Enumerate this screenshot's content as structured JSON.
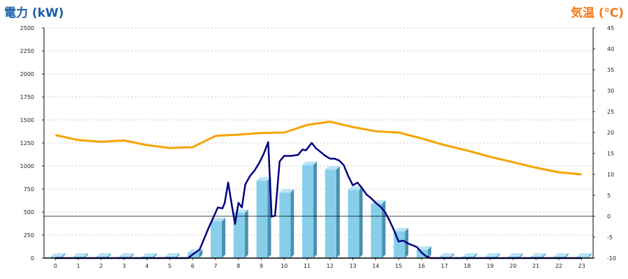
{
  "chart_data": {
    "type": "bar",
    "left_axis_title": "電力 (kW)",
    "right_axis_title": "気温 (℃)",
    "categories": [
      "0",
      "1",
      "2",
      "3",
      "4",
      "5",
      "6",
      "7",
      "8",
      "9",
      "10",
      "11",
      "12",
      "13",
      "14",
      "15",
      "16",
      "17",
      "18",
      "19",
      "20",
      "21",
      "22",
      "23"
    ],
    "ylim": [
      0,
      2500
    ],
    "y_ticks": [
      0,
      250,
      500,
      750,
      1000,
      1250,
      1500,
      1750,
      2000,
      2250,
      2500
    ],
    "y2lim": [
      -10,
      45
    ],
    "y2_ticks": [
      -10,
      -5,
      0,
      5,
      10,
      15,
      20,
      25,
      30,
      35,
      40,
      45
    ],
    "grid": true,
    "colors": {
      "bar": "#87ceeb",
      "bar_side": "#4a90b0",
      "bar_top": "#b8e4f5",
      "power_line": "#000080",
      "temp_line": "#f5a300",
      "zero_line": "#000000"
    },
    "series": [
      {
        "kind": "bar",
        "axis": "left",
        "values": [
          0,
          0,
          0,
          0,
          0,
          0,
          60,
          400,
          490,
          840,
          710,
          1010,
          960,
          740,
          590,
          290,
          90,
          0,
          0,
          0,
          0,
          0,
          0,
          0
        ]
      },
      {
        "kind": "line",
        "axis": "left",
        "points": [
          [
            0,
            0
          ],
          [
            1,
            0
          ],
          [
            2,
            0
          ],
          [
            3,
            0
          ],
          [
            4,
            0
          ],
          [
            5,
            0
          ],
          [
            5.8,
            0
          ],
          [
            6,
            40
          ],
          [
            6.3,
            90
          ],
          [
            6.5,
            210
          ],
          [
            6.7,
            330
          ],
          [
            6.9,
            440
          ],
          [
            7.1,
            550
          ],
          [
            7.3,
            540
          ],
          [
            7.4,
            600
          ],
          [
            7.55,
            820
          ],
          [
            7.7,
            590
          ],
          [
            7.85,
            370
          ],
          [
            8.0,
            600
          ],
          [
            8.15,
            550
          ],
          [
            8.3,
            800
          ],
          [
            8.5,
            890
          ],
          [
            8.7,
            950
          ],
          [
            8.9,
            1030
          ],
          [
            9.1,
            1130
          ],
          [
            9.3,
            1260
          ],
          [
            9.45,
            450
          ],
          [
            9.6,
            460
          ],
          [
            9.8,
            1050
          ],
          [
            10.0,
            1110
          ],
          [
            10.3,
            1110
          ],
          [
            10.6,
            1120
          ],
          [
            10.8,
            1180
          ],
          [
            10.95,
            1170
          ],
          [
            11.2,
            1250
          ],
          [
            11.4,
            1190
          ],
          [
            11.6,
            1150
          ],
          [
            11.8,
            1110
          ],
          [
            12.0,
            1080
          ],
          [
            12.2,
            1080
          ],
          [
            12.4,
            1060
          ],
          [
            12.6,
            1010
          ],
          [
            12.8,
            890
          ],
          [
            13.0,
            790
          ],
          [
            13.2,
            820
          ],
          [
            13.4,
            760
          ],
          [
            13.6,
            690
          ],
          [
            13.8,
            650
          ],
          [
            14.0,
            600
          ],
          [
            14.2,
            560
          ],
          [
            14.4,
            500
          ],
          [
            14.6,
            410
          ],
          [
            14.8,
            300
          ],
          [
            15.0,
            180
          ],
          [
            15.2,
            190
          ],
          [
            15.4,
            160
          ],
          [
            15.6,
            140
          ],
          [
            15.8,
            120
          ],
          [
            16.0,
            60
          ],
          [
            16.2,
            20
          ],
          [
            16.4,
            0
          ],
          [
            17,
            0
          ],
          [
            18,
            0
          ],
          [
            19,
            0
          ],
          [
            20,
            0
          ],
          [
            21,
            0
          ],
          [
            22,
            0
          ],
          [
            23,
            0
          ]
        ]
      },
      {
        "kind": "line",
        "axis": "right",
        "points": [
          [
            0,
            19.4
          ],
          [
            1,
            18.2
          ],
          [
            2,
            17.8
          ],
          [
            3,
            18.1
          ],
          [
            4,
            17.0
          ],
          [
            5,
            16.3
          ],
          [
            6,
            16.5
          ],
          [
            7,
            19.2
          ],
          [
            8,
            19.5
          ],
          [
            9,
            19.9
          ],
          [
            10,
            20.0
          ],
          [
            11,
            21.8
          ],
          [
            12,
            22.6
          ],
          [
            13,
            21.3
          ],
          [
            14,
            20.3
          ],
          [
            15,
            20.0
          ],
          [
            16,
            18.6
          ],
          [
            17,
            17.0
          ],
          [
            18,
            15.7
          ],
          [
            19,
            14.2
          ],
          [
            20,
            12.9
          ],
          [
            21,
            11.6
          ],
          [
            22,
            10.5
          ],
          [
            23,
            10.0
          ]
        ]
      }
    ]
  }
}
